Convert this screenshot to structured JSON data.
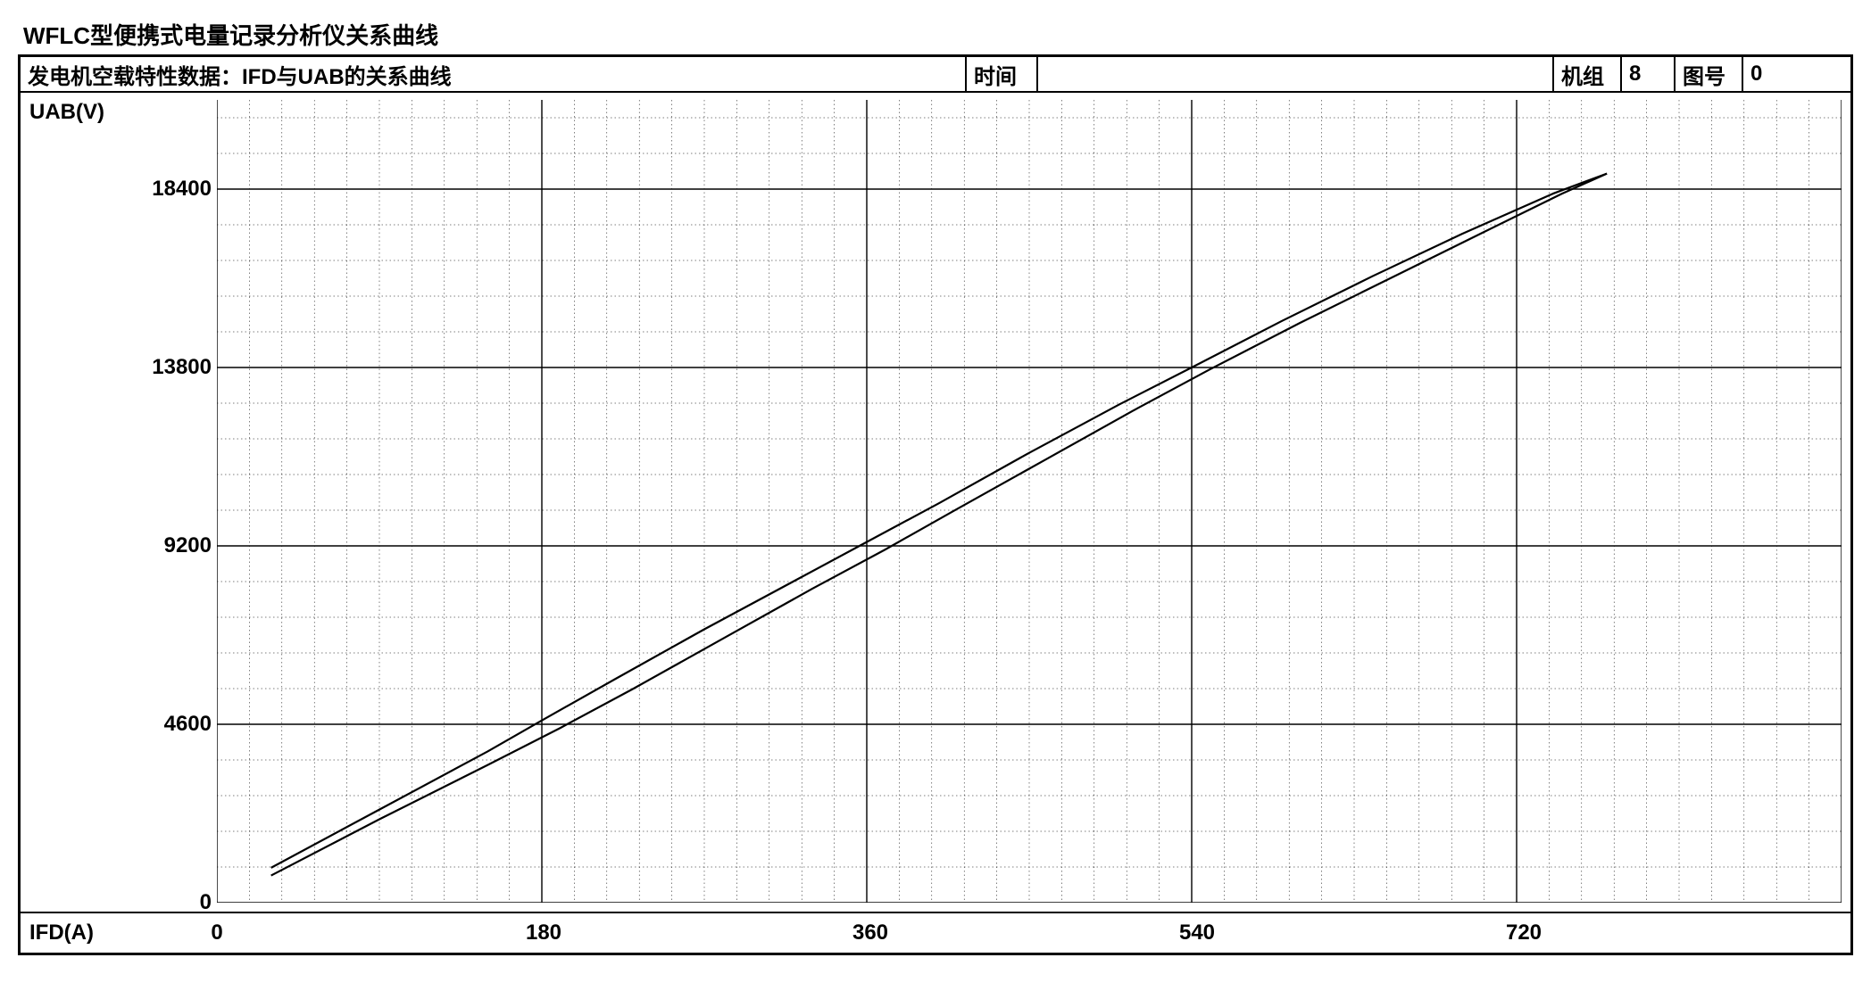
{
  "title": "WFLC型便携式电量记录分析仪关系曲线",
  "header": {
    "subtitle": "发电机空载特性数据：IFD与UAB的关系曲线",
    "time_label": "时间",
    "time_value": "",
    "unit_label": "机组",
    "unit_value": "8",
    "figure_label": "图号",
    "figure_value": "0"
  },
  "chart": {
    "type": "line",
    "y_axis_label": "UAB(V)",
    "x_axis_label": "IFD(A)",
    "xlim": [
      0,
      900
    ],
    "ylim": [
      0,
      20700
    ],
    "x_major_step": 180,
    "y_major_step": 4600,
    "x_minor_per_major": 10,
    "y_minor_per_major": 5,
    "x_ticks": [
      0,
      180,
      360,
      540,
      720
    ],
    "y_ticks": [
      0,
      4600,
      9200,
      13800,
      18400
    ],
    "background_color": "#ffffff",
    "major_grid_color": "#000000",
    "minor_grid_color": "#000000",
    "major_grid_width": 1.4,
    "minor_grid_width": 0.5,
    "minor_grid_dash": "1.5 3",
    "series": [
      {
        "name": "up",
        "color": "#000000",
        "width": 2.2,
        "points": [
          [
            30,
            900
          ],
          [
            90,
            2400
          ],
          [
            150,
            3900
          ],
          [
            180,
            4700
          ],
          [
            220,
            5750
          ],
          [
            270,
            7050
          ],
          [
            320,
            8300
          ],
          [
            360,
            9300
          ],
          [
            400,
            10300
          ],
          [
            450,
            11600
          ],
          [
            500,
            12850
          ],
          [
            540,
            13800
          ],
          [
            590,
            15000
          ],
          [
            640,
            16150
          ],
          [
            690,
            17250
          ],
          [
            740,
            18280
          ],
          [
            770,
            18800
          ]
        ]
      },
      {
        "name": "down",
        "color": "#000000",
        "width": 2.2,
        "points": [
          [
            30,
            700
          ],
          [
            90,
            2150
          ],
          [
            150,
            3550
          ],
          [
            190,
            4500
          ],
          [
            230,
            5500
          ],
          [
            280,
            6800
          ],
          [
            330,
            8100
          ],
          [
            370,
            9100
          ],
          [
            410,
            10150
          ],
          [
            460,
            11450
          ],
          [
            510,
            12750
          ],
          [
            550,
            13750
          ],
          [
            600,
            14950
          ],
          [
            650,
            16100
          ],
          [
            700,
            17250
          ],
          [
            745,
            18280
          ],
          [
            770,
            18800
          ]
        ]
      }
    ],
    "label_fontsize": 24,
    "label_fontweight": "bold",
    "text_color": "#000000"
  }
}
